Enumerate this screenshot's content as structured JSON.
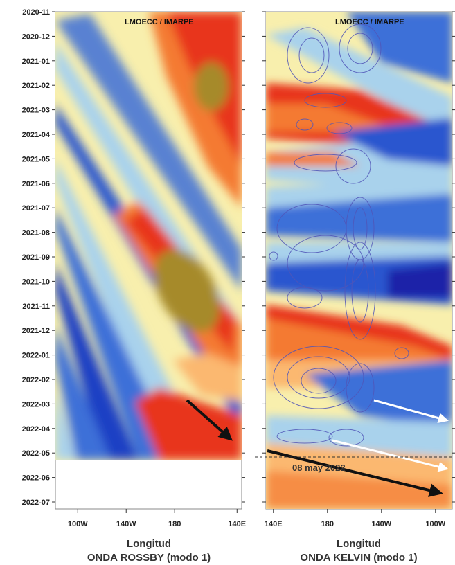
{
  "chart_data": [
    {
      "type": "heatmap",
      "panel": "rossby",
      "credit": "LMOECC / IMARPE",
      "title": "ONDA ROSSBY (modo 1)",
      "xlabel": "Longitud",
      "x_ticks": [
        "100W",
        "140W",
        "180",
        "140E"
      ],
      "y_ticks": [
        "2020-11",
        "2020-12",
        "2021-01",
        "2021-02",
        "2021-03",
        "2021-04",
        "2021-05",
        "2021-06",
        "2021-07",
        "2021-08",
        "2021-09",
        "2021-10",
        "2021-11",
        "2021-12",
        "2022-01",
        "2022-02",
        "2022-03",
        "2022-04",
        "2022-05",
        "2022-06",
        "2022-07"
      ],
      "data_end": "2022-05",
      "arrow": {
        "from": {
          "lon": "165E",
          "date": "2022-03"
        },
        "to": {
          "lon": "140E",
          "date": "2022-04-25"
        },
        "color": "#111111"
      }
    },
    {
      "type": "heatmap",
      "panel": "kelvin",
      "credit": "LMOECC / IMARPE",
      "title": "ONDA KELVIN (modo 1)",
      "xlabel": "Longitud",
      "x_ticks": [
        "140E",
        "180",
        "140W",
        "100W"
      ],
      "y_ticks": [
        "2020-11",
        "2020-12",
        "2021-01",
        "2021-02",
        "2021-03",
        "2021-04",
        "2021-05",
        "2021-06",
        "2021-07",
        "2021-08",
        "2021-09",
        "2021-10",
        "2021-11",
        "2021-12",
        "2022-01",
        "2022-02",
        "2022-03",
        "2022-04",
        "2022-05",
        "2022-06",
        "2022-07"
      ],
      "annotation": "08 may 2022",
      "arrows": [
        {
          "color": "#ffffff",
          "from": {
            "lon": "140W",
            "date": "2022-03-10"
          },
          "to": {
            "lon": "90W",
            "date": "2022-04-05"
          }
        },
        {
          "color": "#ffffff",
          "from": {
            "lon": "165W",
            "date": "2022-04-20"
          },
          "to": {
            "lon": "90W",
            "date": "2022-05-20"
          }
        },
        {
          "color": "#111111",
          "from": {
            "lon": "140E",
            "date": "2022-05-05"
          },
          "to": {
            "lon": "90W",
            "date": "2022-07-15"
          }
        }
      ]
    }
  ],
  "colors": {
    "warm_strong": "#e8361a",
    "warm": "#f47a32",
    "warm_light": "#fbb870",
    "neutral": "#f8efad",
    "cool_light": "#a9d2ec",
    "cool": "#3c6fd8",
    "cool_strong": "#0f2fb8",
    "peak": "#a68a2a",
    "contour": "#5055b8"
  }
}
